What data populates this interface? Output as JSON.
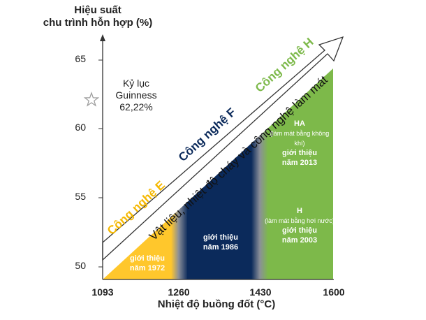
{
  "chart_data": {
    "type": "area",
    "y_axis_title_line1": "Hiệu suất",
    "y_axis_title_line2": "chu trình hỗn hợp (%)",
    "x_axis_title": "Nhiệt độ buồng đốt (°C)",
    "x_ticks": [
      "1093",
      "1260",
      "1430",
      "1600"
    ],
    "y_ticks": [
      "50",
      "55",
      "60",
      "65"
    ],
    "xlim": [
      1093,
      1600
    ],
    "ylim": [
      48.5,
      66
    ],
    "record": {
      "line1": "Kỷ lục",
      "line2": "Guinness",
      "line3": "62,22%",
      "value": 62.22
    },
    "arrow_label": "Vật liệu, nhiệt độ cháy và công nghệ làm mát",
    "technologies": [
      {
        "name": "Công nghệ E",
        "color": "#FFC72C",
        "x_start": 1093,
        "x_end": 1242,
        "intro_line1": "giới thiệu",
        "intro_line2": "năm 1972"
      },
      {
        "name": "Công nghệ F",
        "color": "#0B2A5B",
        "x_start": 1265,
        "x_end": 1412,
        "intro_line1": "giới thiệu",
        "intro_line2": "năm 1986"
      },
      {
        "name": "Công nghệ H",
        "color": "#7DB94A",
        "x_start": 1438,
        "x_end": 1600,
        "variants": [
          {
            "code": "HA",
            "note": "(làm mát bằng không khí)",
            "intro_line1": "giới thiệu",
            "intro_line2": "năm 2013"
          },
          {
            "code": "H",
            "note": "(làm mát bằng hơi nước)",
            "intro_line1": "giới thiệu",
            "intro_line2": "năm 2003"
          }
        ]
      }
    ],
    "colors": {
      "title_E": "#F5B800",
      "title_F": "#0B2A5B",
      "title_H": "#7DB94A",
      "gradient_gray": "#8A8F99"
    }
  }
}
